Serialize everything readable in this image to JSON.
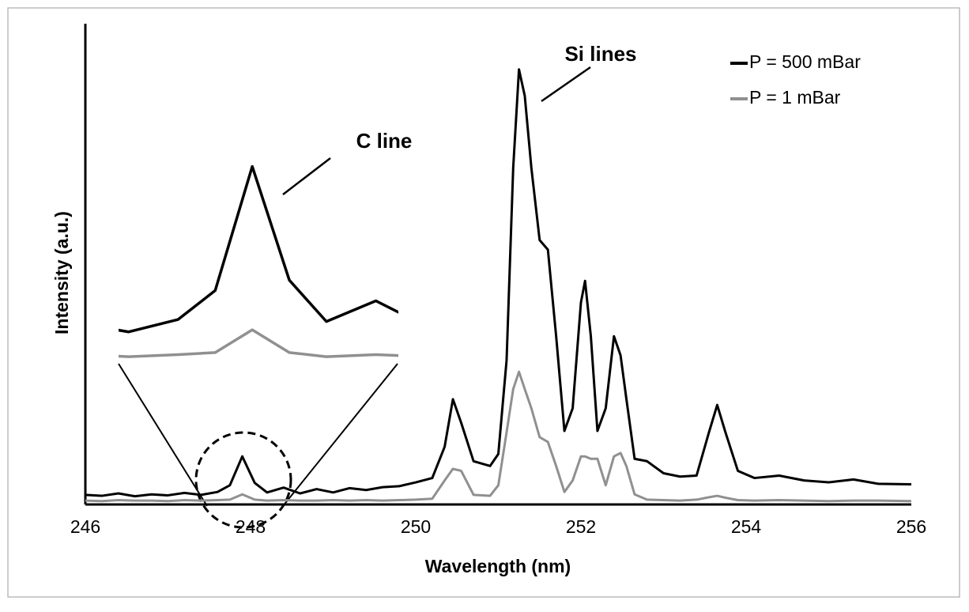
{
  "chart_data": {
    "type": "line",
    "x_label": "Wavelength (nm)",
    "y_label": "Intensity (a.u.)",
    "annotations": [
      "Si lines",
      "C line"
    ],
    "x": [
      246,
      246.2,
      246.4,
      246.6,
      246.8,
      247,
      247.2,
      247.4,
      247.6,
      247.75,
      247.9,
      248.05,
      248.2,
      248.4,
      248.6,
      248.8,
      249,
      249.2,
      249.4,
      249.6,
      249.8,
      250,
      250.2,
      250.35,
      250.45,
      250.55,
      250.7,
      250.9,
      251,
      251.1,
      251.18,
      251.25,
      251.32,
      251.4,
      251.5,
      251.6,
      251.7,
      251.8,
      251.9,
      252,
      252.05,
      252.12,
      252.2,
      252.3,
      252.4,
      252.48,
      252.55,
      252.65,
      252.8,
      253,
      253.2,
      253.4,
      253.55,
      253.65,
      253.75,
      253.9,
      254.1,
      254.4,
      254.7,
      255,
      255.3,
      255.6,
      256
    ],
    "series": [
      {
        "name": "P = 500 mBar",
        "color": "#000000",
        "values": [
          2.0,
          1.8,
          2.3,
          1.7,
          2.1,
          1.9,
          2.4,
          2.0,
          2.6,
          4.0,
          10.0,
          4.5,
          2.5,
          3.5,
          2.3,
          3.2,
          2.5,
          3.4,
          3.0,
          3.6,
          3.8,
          4.6,
          5.5,
          12,
          21.9,
          17,
          9,
          8,
          10.5,
          30,
          70,
          90.5,
          85,
          70,
          55,
          53,
          35,
          15.3,
          20,
          42,
          46.5,
          35,
          15.3,
          20,
          35,
          31,
          22,
          9.5,
          9.0,
          6.5,
          5.8,
          6.0,
          15,
          20.7,
          15,
          7.0,
          5.5,
          6.0,
          5.0,
          4.6,
          5.2,
          4.3,
          4.2
        ]
      },
      {
        "name": "P = 1 mBar",
        "color": "#909090",
        "values": [
          0.8,
          0.7,
          0.9,
          0.8,
          0.8,
          0.7,
          0.9,
          0.8,
          0.9,
          1.0,
          2.1,
          1.0,
          0.8,
          0.9,
          0.8,
          0.8,
          0.9,
          0.8,
          0.9,
          0.8,
          0.9,
          1.0,
          1.2,
          5,
          7.4,
          7.0,
          2.0,
          1.8,
          4,
          15,
          24,
          27.6,
          24,
          20,
          14,
          13,
          8,
          2.6,
          5,
          10,
          10,
          9.5,
          9.5,
          4,
          10,
          10.7,
          8,
          2.1,
          1.0,
          0.9,
          0.8,
          1.0,
          1.5,
          1.8,
          1.4,
          0.9,
          0.8,
          0.9,
          0.8,
          0.7,
          0.8,
          0.8,
          0.7
        ]
      }
    ],
    "xlim": [
      246,
      256
    ],
    "xticks": [
      246,
      248,
      250,
      252,
      254,
      256
    ],
    "ylim": [
      0,
      100
    ],
    "grid": false,
    "legend": "top-right"
  }
}
